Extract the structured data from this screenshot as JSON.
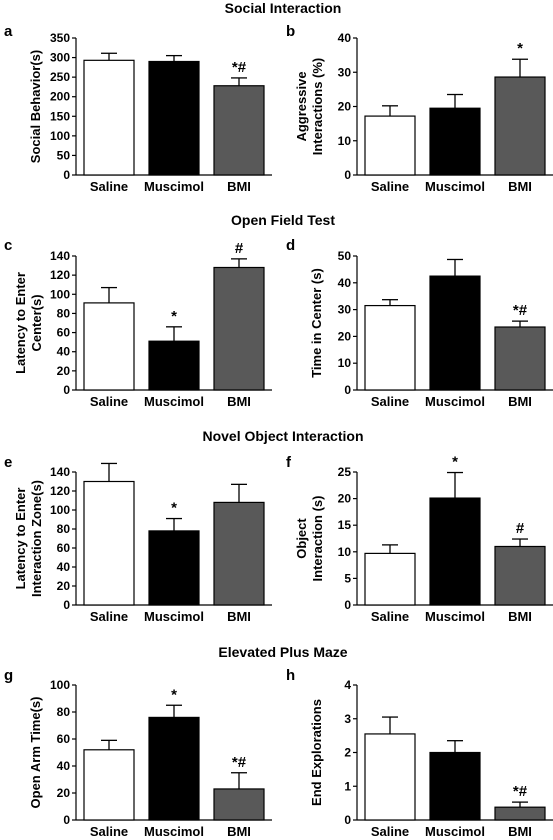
{
  "sections": [
    {
      "title": "Social Interaction"
    },
    {
      "title": "Open Field Test"
    },
    {
      "title": "Novel Object Interaction"
    },
    {
      "title": "Elevated Plus Maze"
    }
  ],
  "colors": {
    "saline": "#ffffff",
    "muscimol": "#000000",
    "bmi": "#595959",
    "stroke": "#000000"
  },
  "chart_data": [
    {
      "panel": "a",
      "type": "bar",
      "categories": [
        "Saline",
        "Muscimol",
        "BMI"
      ],
      "values": [
        293,
        290,
        228
      ],
      "errors": [
        18,
        15,
        20
      ],
      "sig": [
        "",
        "",
        "*#"
      ],
      "ylabel": [
        "Social Behavior(s)"
      ],
      "ylim": [
        0,
        350
      ],
      "yticks": [
        0,
        50,
        100,
        150,
        200,
        250,
        300,
        350
      ]
    },
    {
      "panel": "b",
      "type": "bar",
      "categories": [
        "Saline",
        "Muscimol",
        "BMI"
      ],
      "values": [
        17.2,
        19.5,
        28.6
      ],
      "errors": [
        3,
        4,
        5.2
      ],
      "sig": [
        "",
        "",
        "*"
      ],
      "ylabel": [
        "Aggressive",
        "Interactions (%)"
      ],
      "ylim": [
        0,
        40
      ],
      "yticks": [
        0,
        10,
        20,
        30,
        40
      ]
    },
    {
      "panel": "c",
      "type": "bar",
      "categories": [
        "Saline",
        "Muscimol",
        "BMI"
      ],
      "values": [
        91,
        51,
        128
      ],
      "errors": [
        16,
        15,
        9
      ],
      "sig": [
        "",
        "*",
        "#"
      ],
      "ylabel": [
        "Latency to Enter",
        "Center(s)"
      ],
      "ylim": [
        0,
        140
      ],
      "yticks": [
        0,
        20,
        40,
        60,
        80,
        100,
        120,
        140
      ]
    },
    {
      "panel": "d",
      "type": "bar",
      "categories": [
        "Saline",
        "Muscimol",
        "BMI"
      ],
      "values": [
        31.5,
        42.5,
        23.5
      ],
      "errors": [
        2.2,
        6.2,
        2.2
      ],
      "sig": [
        "",
        "",
        "*#"
      ],
      "ylabel": [
        "Time in Center (s)"
      ],
      "ylim": [
        0,
        50
      ],
      "yticks": [
        0,
        10,
        20,
        30,
        40,
        50
      ]
    },
    {
      "panel": "e",
      "type": "bar",
      "categories": [
        "Saline",
        "Muscimol",
        "BMI"
      ],
      "values": [
        130,
        78,
        108
      ],
      "errors": [
        19,
        13,
        19
      ],
      "sig": [
        "",
        "*",
        ""
      ],
      "ylabel": [
        "Latency to Enter",
        "Interaction Zone(s)"
      ],
      "ylim": [
        0,
        140
      ],
      "yticks": [
        0,
        20,
        40,
        60,
        80,
        100,
        120,
        140
      ]
    },
    {
      "panel": "f",
      "type": "bar",
      "categories": [
        "Saline",
        "Muscimol",
        "BMI"
      ],
      "values": [
        9.7,
        20.1,
        11
      ],
      "errors": [
        1.6,
        4.8,
        1.4
      ],
      "sig": [
        "",
        "*",
        "#"
      ],
      "ylabel": [
        "Object",
        "Interaction (s)"
      ],
      "ylim": [
        0,
        25
      ],
      "yticks": [
        0,
        5,
        10,
        15,
        20,
        25
      ]
    },
    {
      "panel": "g",
      "type": "bar",
      "categories": [
        "Saline",
        "Muscimol",
        "BMI"
      ],
      "values": [
        52,
        76,
        23
      ],
      "errors": [
        7,
        9,
        12
      ],
      "sig": [
        "",
        "*",
        "*#"
      ],
      "ylabel": [
        "Open Arm Time(s)"
      ],
      "ylim": [
        0,
        100
      ],
      "yticks": [
        0,
        20,
        40,
        60,
        80,
        100
      ]
    },
    {
      "panel": "h",
      "type": "bar",
      "categories": [
        "Saline",
        "Muscimol",
        "BMI"
      ],
      "values": [
        2.55,
        2.0,
        0.38
      ],
      "errors": [
        0.5,
        0.35,
        0.15
      ],
      "sig": [
        "",
        "",
        "*#"
      ],
      "ylabel": [
        "End Explorations"
      ],
      "ylim": [
        0,
        4
      ],
      "yticks": [
        0,
        1,
        2,
        3,
        4
      ]
    }
  ]
}
